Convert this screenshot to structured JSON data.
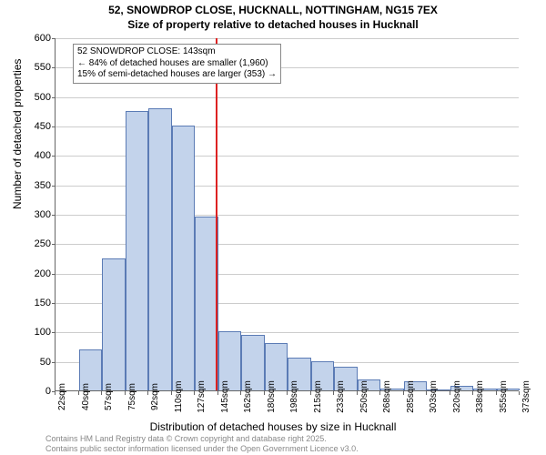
{
  "title_line1": "52, SNOWDROP CLOSE, HUCKNALL, NOTTINGHAM, NG15 7EX",
  "title_line2": "Size of property relative to detached houses in Hucknall",
  "ylabel": "Number of detached properties",
  "xlabel": "Distribution of detached houses by size in Hucknall",
  "footer_line1": "Contains HM Land Registry data © Crown copyright and database right 2025.",
  "footer_line2": "Contains public sector information licensed under the Open Government Licence v3.0.",
  "annotation": {
    "line1": "52 SNOWDROP CLOSE: 143sqm",
    "line2": "← 84% of detached houses are smaller (1,960)",
    "line3": "15% of semi-detached houses are larger (353) →"
  },
  "chart": {
    "type": "histogram",
    "bar_color": "#c3d3eb",
    "bar_border_color": "#5b7bb5",
    "marker_color": "#d22",
    "marker_x_value": 143,
    "grid_color": "#cccccc",
    "axis_color": "#666666",
    "background_color": "#ffffff",
    "ylim": [
      0,
      600
    ],
    "ytick_step": 50,
    "x_start": 22,
    "x_step": 17.5,
    "x_ticks": [
      "22sqm",
      "40sqm",
      "57sqm",
      "75sqm",
      "92sqm",
      "110sqm",
      "127sqm",
      "145sqm",
      "162sqm",
      "180sqm",
      "198sqm",
      "215sqm",
      "233sqm",
      "250sqm",
      "268sqm",
      "285sqm",
      "303sqm",
      "320sqm",
      "338sqm",
      "355sqm",
      "373sqm"
    ],
    "values": [
      0,
      70,
      225,
      475,
      480,
      450,
      295,
      100,
      95,
      80,
      55,
      50,
      40,
      18,
      3,
      15,
      2,
      8,
      3,
      3
    ]
  }
}
